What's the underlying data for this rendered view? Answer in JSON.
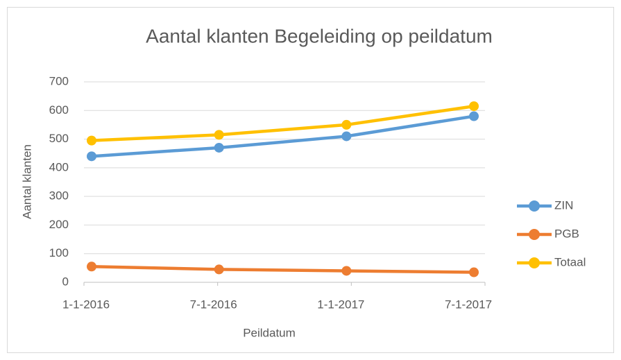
{
  "chart_data": {
    "type": "line",
    "title": "Aantal klanten Begeleiding op peildatum",
    "x_label": "Peildatum",
    "y_label": "Aantal klanten",
    "categories": [
      "1-1-2016",
      "7-1-2016",
      "1-1-2017",
      "7-1-2017"
    ],
    "series": [
      {
        "name": "ZIN",
        "color": "#5b9bd5",
        "values": [
          440,
          470,
          510,
          580
        ]
      },
      {
        "name": "PGB",
        "color": "#ed7d31",
        "values": [
          55,
          45,
          40,
          35
        ]
      },
      {
        "name": "Totaal",
        "color": "#ffc000",
        "values": [
          495,
          515,
          550,
          615
        ]
      }
    ],
    "ylim": [
      0,
      700
    ],
    "yticks": [
      0,
      100,
      200,
      300,
      400,
      500,
      600,
      700
    ],
    "grid": true,
    "legend": "right"
  }
}
